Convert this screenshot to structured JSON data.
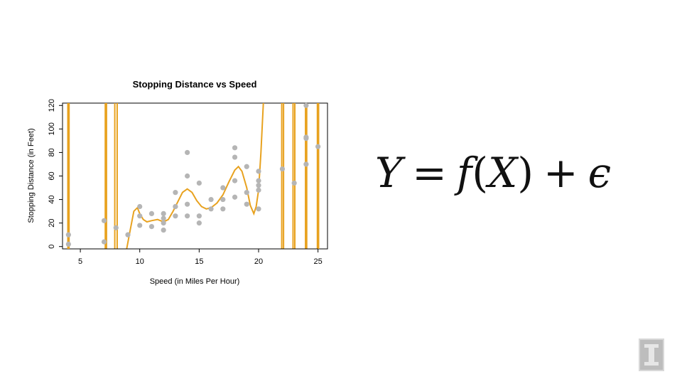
{
  "chart_data": {
    "type": "scatter",
    "title": "Stopping Distance vs Speed",
    "xlabel": "Speed (in Miles Per Hour)",
    "ylabel": "Stopping Distance (in Feet)",
    "xlim": [
      3.5,
      25.8
    ],
    "ylim": [
      -2,
      122
    ],
    "xticks": [
      5,
      10,
      15,
      20,
      25
    ],
    "yticks": [
      0,
      20,
      40,
      60,
      80,
      100,
      120
    ],
    "grid": false,
    "legend": "none",
    "points": [
      [
        4,
        2
      ],
      [
        4,
        10
      ],
      [
        7,
        4
      ],
      [
        7,
        22
      ],
      [
        8,
        16
      ],
      [
        9,
        10
      ],
      [
        10,
        18
      ],
      [
        10,
        26
      ],
      [
        10,
        34
      ],
      [
        11,
        17
      ],
      [
        11,
        28
      ],
      [
        12,
        14
      ],
      [
        12,
        20
      ],
      [
        12,
        24
      ],
      [
        12,
        28
      ],
      [
        13,
        26
      ],
      [
        13,
        34
      ],
      [
        13,
        34
      ],
      [
        13,
        46
      ],
      [
        14,
        26
      ],
      [
        14,
        36
      ],
      [
        14,
        60
      ],
      [
        14,
        80
      ],
      [
        15,
        20
      ],
      [
        15,
        26
      ],
      [
        15,
        54
      ],
      [
        16,
        32
      ],
      [
        16,
        40
      ],
      [
        17,
        32
      ],
      [
        17,
        40
      ],
      [
        17,
        50
      ],
      [
        18,
        42
      ],
      [
        18,
        56
      ],
      [
        18,
        76
      ],
      [
        18,
        84
      ],
      [
        19,
        36
      ],
      [
        19,
        46
      ],
      [
        19,
        68
      ],
      [
        20,
        32
      ],
      [
        20,
        48
      ],
      [
        20,
        52
      ],
      [
        20,
        56
      ],
      [
        20,
        64
      ],
      [
        22,
        66
      ],
      [
        23,
        54
      ],
      [
        24,
        70
      ],
      [
        24,
        92
      ],
      [
        24,
        93
      ],
      [
        24,
        120
      ],
      [
        25,
        85
      ]
    ],
    "fit_curve": [
      [
        8.9,
        -2
      ],
      [
        9.2,
        14
      ],
      [
        9.5,
        30
      ],
      [
        9.8,
        33
      ],
      [
        10.0,
        28
      ],
      [
        10.3,
        23
      ],
      [
        10.6,
        21
      ],
      [
        11.0,
        22
      ],
      [
        11.5,
        23
      ],
      [
        12.0,
        21
      ],
      [
        12.4,
        23
      ],
      [
        12.8,
        30
      ],
      [
        13.2,
        38
      ],
      [
        13.6,
        46
      ],
      [
        14.0,
        49
      ],
      [
        14.4,
        46
      ],
      [
        14.8,
        39
      ],
      [
        15.2,
        34
      ],
      [
        15.6,
        32
      ],
      [
        16.0,
        33
      ],
      [
        16.5,
        37
      ],
      [
        17.0,
        44
      ],
      [
        17.5,
        55
      ],
      [
        18.0,
        65
      ],
      [
        18.3,
        68
      ],
      [
        18.6,
        64
      ],
      [
        19.0,
        50
      ],
      [
        19.3,
        35
      ],
      [
        19.6,
        28
      ],
      [
        19.8,
        34
      ],
      [
        20.0,
        48
      ],
      [
        20.2,
        80
      ],
      [
        20.4,
        122
      ]
    ],
    "fit_vertical_segments": [
      {
        "x": 3.95,
        "from": -2,
        "to": 122
      },
      {
        "x": 4.05,
        "from": -2,
        "to": 122
      },
      {
        "x": 7.1,
        "from": -2,
        "to": 122
      },
      {
        "x": 7.2,
        "from": -2,
        "to": 122
      },
      {
        "x": 7.9,
        "from": -2,
        "to": 122
      },
      {
        "x": 8.1,
        "from": -2,
        "to": 122
      },
      {
        "x": 21.95,
        "from": -2,
        "to": 122
      },
      {
        "x": 22.1,
        "from": -2,
        "to": 122
      },
      {
        "x": 22.9,
        "from": -2,
        "to": 122
      },
      {
        "x": 23.05,
        "from": -2,
        "to": 122
      },
      {
        "x": 23.95,
        "from": -2,
        "to": 122
      },
      {
        "x": 24.05,
        "from": -2,
        "to": 122
      },
      {
        "x": 24.95,
        "from": -2,
        "to": 122
      },
      {
        "x": 25.05,
        "from": -2,
        "to": 122
      }
    ],
    "colors": {
      "points": "#b5b5b5",
      "fit": "#e8a21f",
      "axis": "#000000"
    }
  },
  "equation": {
    "lhs": "Y",
    "equals": "=",
    "f": "f",
    "open": "(",
    "x": "X",
    "close": ")",
    "plus": "+",
    "eps": "ϵ"
  },
  "logo": {
    "letter": "I",
    "icon": "university-logo-icon"
  }
}
